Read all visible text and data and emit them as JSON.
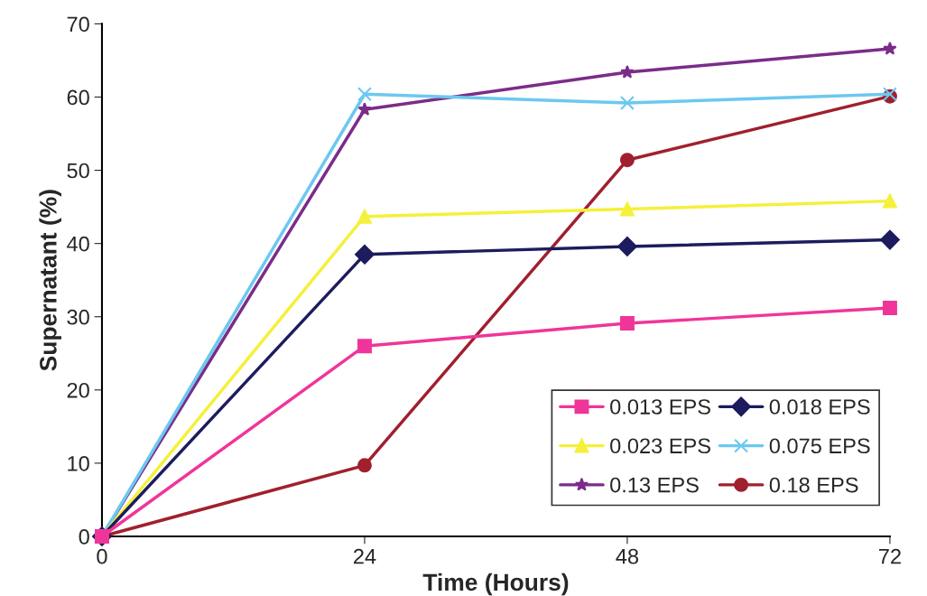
{
  "chart_data": {
    "type": "line",
    "xlabel": "Time (Hours)",
    "ylabel": "Supernatant (%)",
    "x": [
      0,
      24,
      48,
      72
    ],
    "xlim": [
      0,
      72
    ],
    "xticks": [
      0,
      24,
      48,
      72
    ],
    "ylim": [
      0,
      70
    ],
    "yticks": [
      0,
      10,
      20,
      30,
      40,
      50,
      60,
      70
    ],
    "grid": false,
    "legend": "bottom right",
    "line_style": "solid",
    "series": [
      {
        "name": "0.013 EPS",
        "color": "#f0359a",
        "marker": "square",
        "values": [
          0,
          26,
          29.1,
          31.2
        ]
      },
      {
        "name": "0.018 EPS",
        "color": "#1c1c5e",
        "marker": "diamond",
        "values": [
          0,
          38.5,
          39.6,
          40.5
        ]
      },
      {
        "name": "0.023 EPS",
        "color": "#f5f03a",
        "marker": "triangle",
        "values": [
          0,
          43.7,
          44.7,
          45.8
        ]
      },
      {
        "name": "0.075 EPS",
        "color": "#6cc8f0",
        "marker": "cross",
        "values": [
          0,
          60.4,
          59.2,
          60.4
        ]
      },
      {
        "name": "0.13 EPS",
        "color": "#7b2c8a",
        "marker": "star",
        "values": [
          0,
          58.3,
          63.4,
          66.6
        ]
      },
      {
        "name": "0.18 EPS",
        "color": "#a0202e",
        "marker": "circle",
        "values": [
          0,
          9.7,
          51.4,
          60.1
        ]
      }
    ]
  }
}
